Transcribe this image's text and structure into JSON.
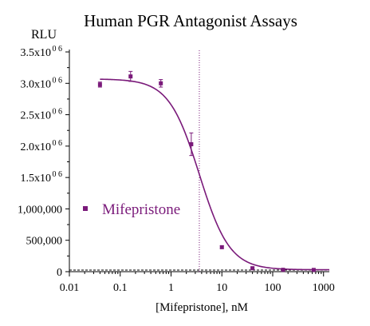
{
  "chart_data": {
    "type": "scatter",
    "title": "Human PGR Antagonist Assays",
    "ylabel": "RLU",
    "xlabel": "[Mifepristone], nM",
    "x_scale": "log",
    "xlim": [
      0.01,
      1300
    ],
    "ylim": [
      0,
      3500000
    ],
    "x_ticks": [
      {
        "value": 0.01,
        "label": "0.01"
      },
      {
        "value": 0.1,
        "label": "0.1"
      },
      {
        "value": 1,
        "label": "1"
      },
      {
        "value": 10,
        "label": "10"
      },
      {
        "value": 100,
        "label": "100"
      },
      {
        "value": 1000,
        "label": "1000"
      }
    ],
    "y_ticks": [
      {
        "value": 0,
        "label": "0",
        "mantissa": "",
        "exp": ""
      },
      {
        "value": 500000,
        "label": "500,000",
        "mantissa": "",
        "exp": ""
      },
      {
        "value": 1000000,
        "label": "1,000,000",
        "mantissa": "",
        "exp": ""
      },
      {
        "value": 1500000,
        "label": "",
        "mantissa": "1.5x10",
        "exp": "0 6"
      },
      {
        "value": 2000000,
        "label": "",
        "mantissa": "2.0x10",
        "exp": "0 6"
      },
      {
        "value": 2500000,
        "label": "",
        "mantissa": "2.5x10",
        "exp": "0 6"
      },
      {
        "value": 3000000,
        "label": "",
        "mantissa": "3.0x10",
        "exp": "0 6"
      },
      {
        "value": 3500000,
        "label": "",
        "mantissa": "3.5x10",
        "exp": "0 6"
      }
    ],
    "series": [
      {
        "name": "Mifepristone",
        "color": "#7a1a7a",
        "points": [
          {
            "x": 0.04,
            "y": 2980000,
            "err": 40000
          },
          {
            "x": 0.16,
            "y": 3110000,
            "err": 80000
          },
          {
            "x": 0.63,
            "y": 3000000,
            "err": 60000
          },
          {
            "x": 2.5,
            "y": 2030000,
            "err": 180000
          },
          {
            "x": 10,
            "y": 390000,
            "err": 20000
          },
          {
            "x": 40,
            "y": 55000,
            "err": 10000
          },
          {
            "x": 160,
            "y": 30000,
            "err": 8000
          },
          {
            "x": 640,
            "y": 28000,
            "err": 8000
          }
        ],
        "fit": {
          "top": 3070000,
          "bottom": 30000,
          "ic50": 3.6,
          "hill": 1.45
        }
      }
    ],
    "ic50_line": {
      "x": 3.6
    },
    "baseline": {
      "y": 0
    },
    "legend": {
      "position": "left-middle",
      "label": "Mifepristone"
    },
    "grid": false
  },
  "colors": {
    "series": "#7a1a7a",
    "ic50": "#7a1a7a"
  }
}
